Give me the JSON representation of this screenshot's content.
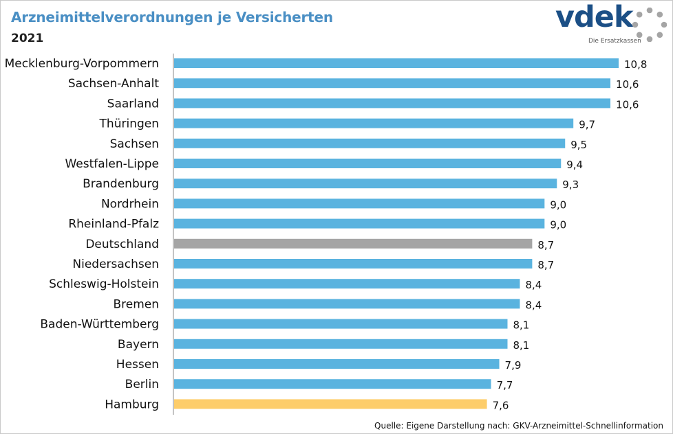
{
  "header": {
    "title": "Arzneimittelverordnungen je Versicherten",
    "subtitle": "2021"
  },
  "logo": {
    "text": "vdek",
    "tagline": "Die Ersatzkassen"
  },
  "source": "Quelle: Eigene Darstellung nach: GKV-Arzneimittel-Schnellinformation",
  "colors": {
    "default_bar": "#5ab3df",
    "highlight_national": "#a5a5a5",
    "highlight_lowest": "#fdcd6a",
    "axis": "#888888",
    "title": "#4a8fc4",
    "logo": "#1b4f86"
  },
  "chart_data": {
    "type": "bar",
    "orientation": "horizontal",
    "title": "Arzneimittelverordnungen je Versicherten",
    "subtitle": "2021",
    "xlim": [
      0,
      11
    ],
    "grid": false,
    "categories": [
      "Mecklenburg-Vorpommern",
      "Sachsen-Anhalt",
      "Saarland",
      "Thüringen",
      "Sachsen",
      "Westfalen-Lippe",
      "Brandenburg",
      "Nordrhein",
      "Rheinland-Pfalz",
      "Deutschland",
      "Niedersachsen",
      "Schleswig-Holstein",
      "Bremen",
      "Baden-Württemberg",
      "Bayern",
      "Hessen",
      "Berlin",
      "Hamburg"
    ],
    "values": [
      10.8,
      10.6,
      10.6,
      9.7,
      9.5,
      9.4,
      9.3,
      9.0,
      9.0,
      8.7,
      8.7,
      8.4,
      8.4,
      8.1,
      8.1,
      7.9,
      7.7,
      7.6
    ],
    "value_labels": [
      "10,8",
      "10,6",
      "10,6",
      "9,7",
      "9,5",
      "9,4",
      "9,3",
      "9,0",
      "9,0",
      "8,7",
      "8,7",
      "8,4",
      "8,4",
      "8,1",
      "8,1",
      "7,9",
      "7,7",
      "7,6"
    ],
    "highlights": {
      "Deutschland": "#a5a5a5",
      "Hamburg": "#fdcd6a"
    }
  }
}
